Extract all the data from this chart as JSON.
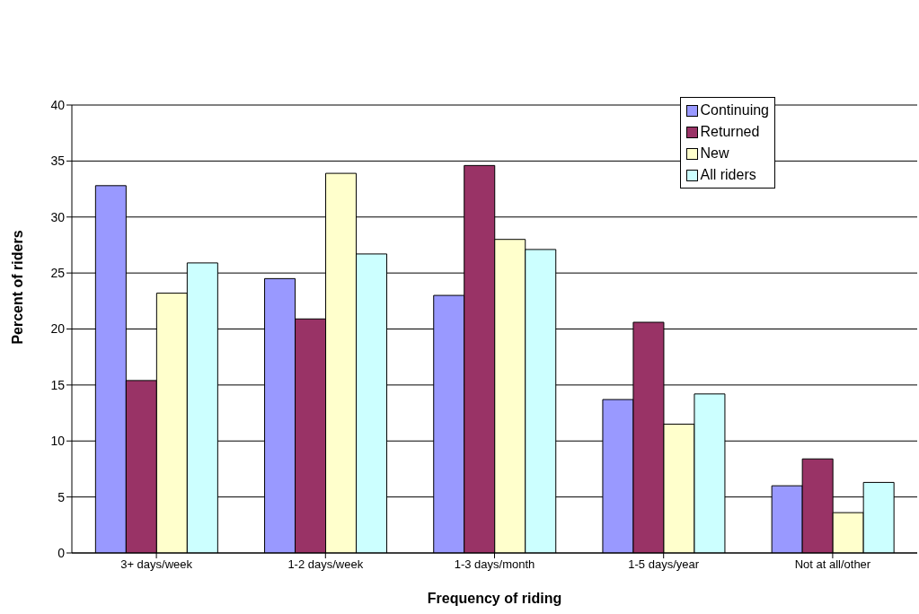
{
  "chart_data": {
    "type": "bar",
    "xlabel": "Frequency of riding",
    "ylabel": "Percent of riders",
    "categories": [
      "3+ days/week",
      "1-2 days/week",
      "1-3 days/month",
      "1-5 days/year",
      "Not at all/other"
    ],
    "series": [
      {
        "name": "Continuing",
        "color": "#9999ff",
        "values": [
          32.8,
          24.5,
          23.0,
          13.7,
          6.0
        ]
      },
      {
        "name": "Returned",
        "color": "#993366",
        "values": [
          15.4,
          20.9,
          34.6,
          20.6,
          8.4
        ]
      },
      {
        "name": "New",
        "color": "#ffffcc",
        "values": [
          23.2,
          33.9,
          28.0,
          11.5,
          3.6
        ]
      },
      {
        "name": "All riders",
        "color": "#ccffff",
        "values": [
          25.9,
          26.7,
          27.1,
          14.2,
          6.3
        ]
      }
    ],
    "ylim": [
      0,
      40
    ],
    "yticks": [
      0,
      5,
      10,
      15,
      20,
      25,
      30,
      35,
      40
    ],
    "grid": "y",
    "legend": "top right"
  }
}
